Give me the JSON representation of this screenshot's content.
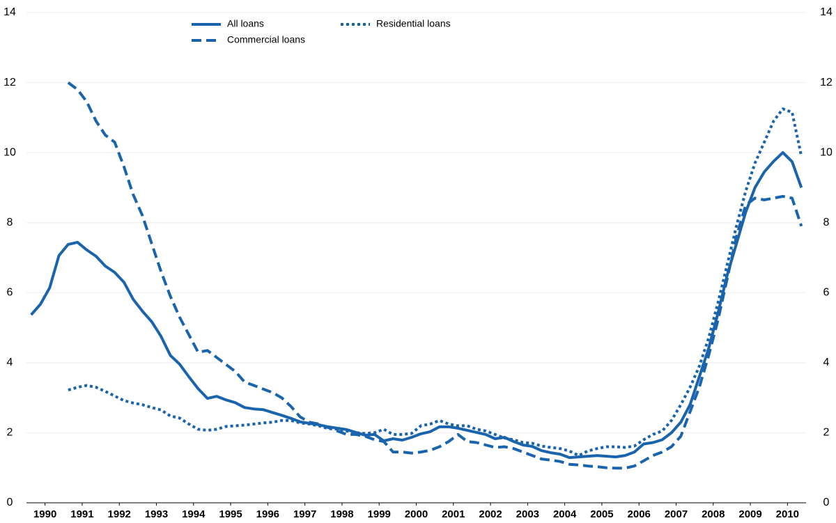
{
  "chart_data": {
    "type": "line",
    "x": [
      1990.125,
      1990.375,
      1990.625,
      1990.875,
      1991.125,
      1991.375,
      1991.625,
      1991.875,
      1992.125,
      1992.375,
      1992.625,
      1992.875,
      1993.125,
      1993.375,
      1993.625,
      1993.875,
      1994.125,
      1994.375,
      1994.625,
      1994.875,
      1995.125,
      1995.375,
      1995.625,
      1995.875,
      1996.125,
      1996.375,
      1996.625,
      1996.875,
      1997.125,
      1997.375,
      1997.625,
      1997.875,
      1998.125,
      1998.375,
      1998.625,
      1998.875,
      1999.125,
      1999.375,
      1999.625,
      1999.875,
      2000.125,
      2000.375,
      2000.625,
      2000.875,
      2001.125,
      2001.375,
      2001.625,
      2001.875,
      2002.125,
      2002.375,
      2002.625,
      2002.875,
      2003.125,
      2003.375,
      2003.625,
      2003.875,
      2004.125,
      2004.375,
      2004.625,
      2004.875,
      2005.125,
      2005.375,
      2005.625,
      2005.875,
      2006.125,
      2006.375,
      2006.625,
      2006.875,
      2007.125,
      2007.375,
      2007.625,
      2007.875,
      2008.125,
      2008.375,
      2008.625,
      2008.875,
      2009.125,
      2009.375,
      2009.625,
      2009.875,
      2010.125,
      2010.375,
      2010.625,
      2010.875
    ],
    "series": [
      {
        "name": "All loans",
        "color": "#1a64ad",
        "line_style": "solid",
        "values": [
          5.37,
          5.67,
          6.14,
          7.06,
          7.38,
          7.44,
          7.22,
          7.04,
          6.76,
          6.58,
          6.3,
          5.81,
          5.47,
          5.17,
          4.75,
          4.21,
          3.96,
          3.6,
          3.26,
          2.98,
          3.04,
          2.94,
          2.86,
          2.72,
          2.68,
          2.66,
          2.58,
          2.5,
          2.41,
          2.31,
          2.27,
          2.23,
          2.17,
          2.13,
          2.09,
          2.01,
          1.93,
          1.95,
          1.77,
          1.83,
          1.79,
          1.87,
          1.97,
          2.03,
          2.17,
          2.17,
          2.13,
          2.07,
          2.01,
          1.95,
          1.83,
          1.87,
          1.75,
          1.65,
          1.61,
          1.49,
          1.43,
          1.39,
          1.29,
          1.31,
          1.33,
          1.35,
          1.33,
          1.31,
          1.35,
          1.45,
          1.68,
          1.72,
          1.8,
          2.0,
          2.3,
          2.8,
          3.6,
          4.4,
          5.4,
          6.5,
          7.4,
          8.3,
          9.0,
          9.45,
          9.75,
          10.0,
          9.74,
          9.0
        ]
      },
      {
        "name": "Commercial loans",
        "color": "#1a64ad",
        "line_style": "dashed",
        "values": [
          null,
          null,
          null,
          null,
          12.0,
          11.8,
          11.45,
          10.9,
          10.5,
          10.3,
          9.6,
          8.8,
          8.2,
          7.4,
          6.6,
          5.9,
          5.3,
          4.8,
          4.3,
          4.35,
          4.15,
          3.95,
          3.75,
          3.45,
          3.35,
          3.25,
          3.15,
          3.0,
          2.75,
          2.45,
          2.3,
          2.25,
          2.15,
          2.05,
          1.95,
          1.95,
          1.9,
          1.8,
          1.75,
          1.45,
          1.45,
          1.42,
          1.45,
          1.5,
          1.6,
          1.75,
          1.95,
          1.75,
          1.72,
          1.65,
          1.58,
          1.6,
          1.55,
          1.45,
          1.35,
          1.25,
          1.22,
          1.18,
          1.1,
          1.08,
          1.05,
          1.03,
          1.0,
          0.99,
          0.99,
          1.05,
          1.2,
          1.35,
          1.45,
          1.6,
          1.9,
          2.6,
          3.3,
          4.2,
          5.2,
          6.4,
          7.6,
          8.5,
          8.7,
          8.65,
          8.7,
          8.75,
          8.7,
          7.9
        ]
      },
      {
        "name": "Residential loans",
        "color": "#1a64ad",
        "line_style": "dotted",
        "values": [
          null,
          null,
          null,
          null,
          3.22,
          3.3,
          3.35,
          3.3,
          3.18,
          3.05,
          2.92,
          2.85,
          2.8,
          2.72,
          2.65,
          2.48,
          2.42,
          2.25,
          2.1,
          2.07,
          2.1,
          2.18,
          2.2,
          2.22,
          2.25,
          2.28,
          2.3,
          2.35,
          2.35,
          2.28,
          2.25,
          2.2,
          2.12,
          2.1,
          2.05,
          2.0,
          1.98,
          2.0,
          2.1,
          1.95,
          1.95,
          1.98,
          2.2,
          2.25,
          2.35,
          2.25,
          2.2,
          2.2,
          2.1,
          2.05,
          1.95,
          1.85,
          1.8,
          1.72,
          1.7,
          1.62,
          1.58,
          1.55,
          1.48,
          1.35,
          1.48,
          1.55,
          1.6,
          1.6,
          1.58,
          1.62,
          1.8,
          1.95,
          2.05,
          2.35,
          2.8,
          3.3,
          3.9,
          4.7,
          5.7,
          6.8,
          7.9,
          8.9,
          9.7,
          10.3,
          10.9,
          11.25,
          11.15,
          9.9
        ]
      }
    ],
    "xlim": [
      1990,
      2011
    ],
    "xticks": [
      {
        "value": 1990.5,
        "label": "1990"
      },
      {
        "value": 1991.5,
        "label": "1991"
      },
      {
        "value": 1992.5,
        "label": "1992"
      },
      {
        "value": 1993.5,
        "label": "1993"
      },
      {
        "value": 1994.5,
        "label": "1994"
      },
      {
        "value": 1995.5,
        "label": "1995"
      },
      {
        "value": 1996.5,
        "label": "1996"
      },
      {
        "value": 1997.5,
        "label": "1997"
      },
      {
        "value": 1998.5,
        "label": "1998"
      },
      {
        "value": 1999.5,
        "label": "1999"
      },
      {
        "value": 2000.5,
        "label": "2000"
      },
      {
        "value": 2001.5,
        "label": "2001"
      },
      {
        "value": 2002.5,
        "label": "2002"
      },
      {
        "value": 2003.5,
        "label": "2003"
      },
      {
        "value": 2004.5,
        "label": "2004"
      },
      {
        "value": 2005.5,
        "label": "2005"
      },
      {
        "value": 2006.5,
        "label": "2006"
      },
      {
        "value": 2007.5,
        "label": "2007"
      },
      {
        "value": 2008.5,
        "label": "2008"
      },
      {
        "value": 2009.5,
        "label": "2009"
      },
      {
        "value": 2010.5,
        "label": "2010"
      }
    ],
    "ylim": [
      0,
      14
    ],
    "yticks": [
      0,
      2,
      4,
      6,
      8,
      10,
      12,
      14
    ],
    "y2lim": [
      0,
      14
    ],
    "y2ticks": [
      0,
      2,
      4,
      6,
      8,
      10,
      12,
      14
    ],
    "grid": true
  }
}
